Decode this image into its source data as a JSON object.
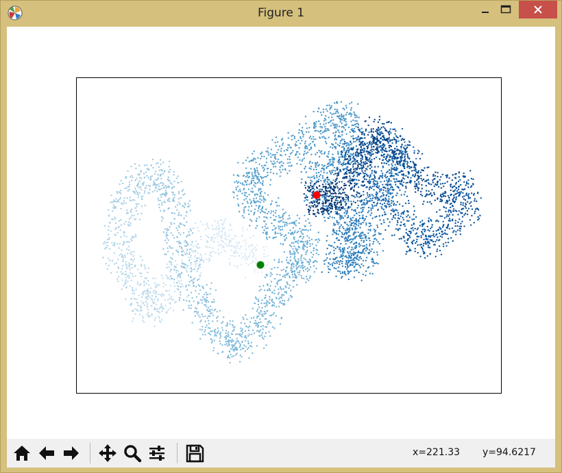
{
  "window": {
    "title": "Figure 1",
    "app_icon": "matplotlib-logo-icon",
    "controls": [
      "minimize-icon",
      "maximize-icon",
      "close-icon"
    ]
  },
  "toolbar": {
    "buttons": [
      "home-icon",
      "back-arrow-icon",
      "forward-arrow-icon",
      "pan-move-icon",
      "zoom-magnifier-icon",
      "configure-subplots-icon",
      "save-floppy-icon"
    ],
    "coord_x": "x=221.33",
    "coord_y": "y=94.6217"
  },
  "chart_data": {
    "type": "scatter",
    "title": "",
    "xlabel": "",
    "ylabel": "",
    "axis_ticks": "hidden",
    "grid": false,
    "colormap": "Blues (light at start of walk, dark at end)",
    "series": [
      {
        "marker": "random-walk points",
        "color_low": "#deebf7",
        "color_high": "#08306b"
      }
    ],
    "markers": [
      {
        "role": "start point",
        "color": "#008000"
      },
      {
        "role": "end point",
        "color": "#ff0000"
      }
    ]
  }
}
